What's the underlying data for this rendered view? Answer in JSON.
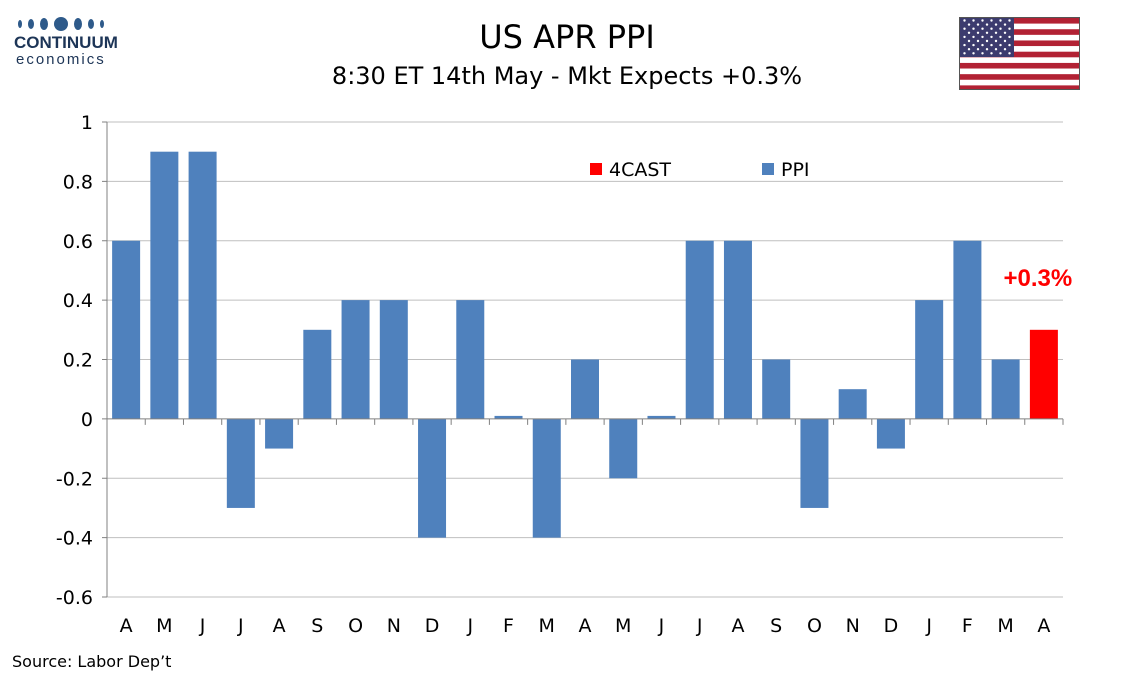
{
  "header": {
    "logo_word": "CONTINUUM",
    "logo_sub": "economics",
    "title": "US APR PPI",
    "subtitle": "8:30 ET 14th May - Mkt Expects +0.3%"
  },
  "footer": {
    "source": "Source: Labor Dep’t"
  },
  "colors": {
    "ppi": "#4f81bd",
    "forecast": "#ff0000",
    "grid": "#bfbfbf",
    "logo": "#1d3557"
  },
  "icons": {
    "flag": "us-flag-icon"
  },
  "chart_data": {
    "type": "bar",
    "title": "",
    "xlabel": "",
    "ylabel": "",
    "ylim": [
      -0.6,
      1
    ],
    "yticks": [
      1,
      0.8,
      0.6,
      0.4,
      0.2,
      0,
      -0.2,
      -0.4,
      -0.6
    ],
    "ytick_labels": [
      "1",
      "0.8",
      "0.6",
      "0.4",
      "0.2",
      "0",
      "-0.2",
      "-0.4",
      "-0.6"
    ],
    "grid": true,
    "legend_position": "top-right",
    "categories": [
      "A",
      "M",
      "J",
      "J",
      "A",
      "S",
      "O",
      "N",
      "D",
      "J",
      "F",
      "M",
      "A",
      "M",
      "J",
      "J",
      "A",
      "S",
      "O",
      "N",
      "D",
      "J",
      "F",
      "M",
      "A"
    ],
    "series": [
      {
        "name": "PPI",
        "color": "#4f81bd",
        "values": [
          0.6,
          0.9,
          0.9,
          -0.3,
          -0.1,
          0.3,
          0.4,
          0.4,
          -0.4,
          0.4,
          0.01,
          -0.4,
          0.2,
          -0.2,
          0.01,
          0.6,
          0.6,
          0.2,
          -0.3,
          0.1,
          -0.1,
          0.4,
          0.6,
          0.2,
          null
        ]
      },
      {
        "name": "4CAST",
        "color": "#ff0000",
        "values": [
          null,
          null,
          null,
          null,
          null,
          null,
          null,
          null,
          null,
          null,
          null,
          null,
          null,
          null,
          null,
          null,
          null,
          null,
          null,
          null,
          null,
          null,
          null,
          null,
          0.3
        ]
      }
    ],
    "annotations": [
      {
        "text": "+0.3%",
        "category_index": 24,
        "color": "#ff0000"
      }
    ]
  }
}
